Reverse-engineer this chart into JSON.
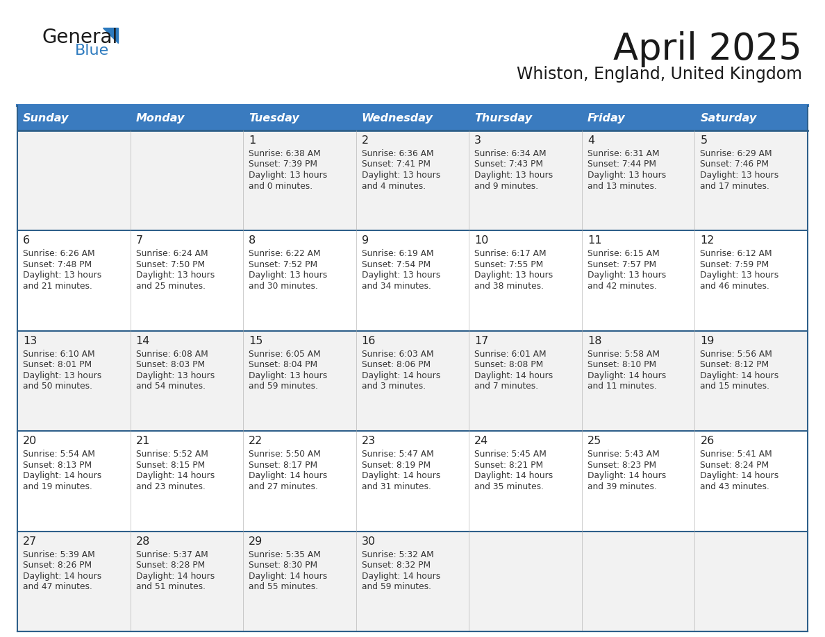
{
  "title": "April 2025",
  "subtitle": "Whiston, England, United Kingdom",
  "header_color": "#3a7bbf",
  "header_text_color": "#ffffff",
  "cell_bg_even": "#f2f2f2",
  "cell_bg_odd": "#ffffff",
  "border_color": "#2e5f8a",
  "text_color": "#333333",
  "day_num_color": "#222222",
  "title_color": "#1a1a1a",
  "subtitle_color": "#1a1a1a",
  "logo_text_color": "#1a1a1a",
  "logo_blue_color": "#2e7bbf",
  "logo_triangle_color": "#2e7bbf",
  "day_headers": [
    "Sunday",
    "Monday",
    "Tuesday",
    "Wednesday",
    "Thursday",
    "Friday",
    "Saturday"
  ],
  "days": [
    {
      "date": 1,
      "col": 2,
      "row": 0,
      "sunrise": "6:38 AM",
      "sunset": "7:39 PM",
      "daylight": "13 hours and 0 minutes."
    },
    {
      "date": 2,
      "col": 3,
      "row": 0,
      "sunrise": "6:36 AM",
      "sunset": "7:41 PM",
      "daylight": "13 hours and 4 minutes."
    },
    {
      "date": 3,
      "col": 4,
      "row": 0,
      "sunrise": "6:34 AM",
      "sunset": "7:43 PM",
      "daylight": "13 hours and 9 minutes."
    },
    {
      "date": 4,
      "col": 5,
      "row": 0,
      "sunrise": "6:31 AM",
      "sunset": "7:44 PM",
      "daylight": "13 hours and 13 minutes."
    },
    {
      "date": 5,
      "col": 6,
      "row": 0,
      "sunrise": "6:29 AM",
      "sunset": "7:46 PM",
      "daylight": "13 hours and 17 minutes."
    },
    {
      "date": 6,
      "col": 0,
      "row": 1,
      "sunrise": "6:26 AM",
      "sunset": "7:48 PM",
      "daylight": "13 hours and 21 minutes."
    },
    {
      "date": 7,
      "col": 1,
      "row": 1,
      "sunrise": "6:24 AM",
      "sunset": "7:50 PM",
      "daylight": "13 hours and 25 minutes."
    },
    {
      "date": 8,
      "col": 2,
      "row": 1,
      "sunrise": "6:22 AM",
      "sunset": "7:52 PM",
      "daylight": "13 hours and 30 minutes."
    },
    {
      "date": 9,
      "col": 3,
      "row": 1,
      "sunrise": "6:19 AM",
      "sunset": "7:54 PM",
      "daylight": "13 hours and 34 minutes."
    },
    {
      "date": 10,
      "col": 4,
      "row": 1,
      "sunrise": "6:17 AM",
      "sunset": "7:55 PM",
      "daylight": "13 hours and 38 minutes."
    },
    {
      "date": 11,
      "col": 5,
      "row": 1,
      "sunrise": "6:15 AM",
      "sunset": "7:57 PM",
      "daylight": "13 hours and 42 minutes."
    },
    {
      "date": 12,
      "col": 6,
      "row": 1,
      "sunrise": "6:12 AM",
      "sunset": "7:59 PM",
      "daylight": "13 hours and 46 minutes."
    },
    {
      "date": 13,
      "col": 0,
      "row": 2,
      "sunrise": "6:10 AM",
      "sunset": "8:01 PM",
      "daylight": "13 hours and 50 minutes."
    },
    {
      "date": 14,
      "col": 1,
      "row": 2,
      "sunrise": "6:08 AM",
      "sunset": "8:03 PM",
      "daylight": "13 hours and 54 minutes."
    },
    {
      "date": 15,
      "col": 2,
      "row": 2,
      "sunrise": "6:05 AM",
      "sunset": "8:04 PM",
      "daylight": "13 hours and 59 minutes."
    },
    {
      "date": 16,
      "col": 3,
      "row": 2,
      "sunrise": "6:03 AM",
      "sunset": "8:06 PM",
      "daylight": "14 hours and 3 minutes."
    },
    {
      "date": 17,
      "col": 4,
      "row": 2,
      "sunrise": "6:01 AM",
      "sunset": "8:08 PM",
      "daylight": "14 hours and 7 minutes."
    },
    {
      "date": 18,
      "col": 5,
      "row": 2,
      "sunrise": "5:58 AM",
      "sunset": "8:10 PM",
      "daylight": "14 hours and 11 minutes."
    },
    {
      "date": 19,
      "col": 6,
      "row": 2,
      "sunrise": "5:56 AM",
      "sunset": "8:12 PM",
      "daylight": "14 hours and 15 minutes."
    },
    {
      "date": 20,
      "col": 0,
      "row": 3,
      "sunrise": "5:54 AM",
      "sunset": "8:13 PM",
      "daylight": "14 hours and 19 minutes."
    },
    {
      "date": 21,
      "col": 1,
      "row": 3,
      "sunrise": "5:52 AM",
      "sunset": "8:15 PM",
      "daylight": "14 hours and 23 minutes."
    },
    {
      "date": 22,
      "col": 2,
      "row": 3,
      "sunrise": "5:50 AM",
      "sunset": "8:17 PM",
      "daylight": "14 hours and 27 minutes."
    },
    {
      "date": 23,
      "col": 3,
      "row": 3,
      "sunrise": "5:47 AM",
      "sunset": "8:19 PM",
      "daylight": "14 hours and 31 minutes."
    },
    {
      "date": 24,
      "col": 4,
      "row": 3,
      "sunrise": "5:45 AM",
      "sunset": "8:21 PM",
      "daylight": "14 hours and 35 minutes."
    },
    {
      "date": 25,
      "col": 5,
      "row": 3,
      "sunrise": "5:43 AM",
      "sunset": "8:23 PM",
      "daylight": "14 hours and 39 minutes."
    },
    {
      "date": 26,
      "col": 6,
      "row": 3,
      "sunrise": "5:41 AM",
      "sunset": "8:24 PM",
      "daylight": "14 hours and 43 minutes."
    },
    {
      "date": 27,
      "col": 0,
      "row": 4,
      "sunrise": "5:39 AM",
      "sunset": "8:26 PM",
      "daylight": "14 hours and 47 minutes."
    },
    {
      "date": 28,
      "col": 1,
      "row": 4,
      "sunrise": "5:37 AM",
      "sunset": "8:28 PM",
      "daylight": "14 hours and 51 minutes."
    },
    {
      "date": 29,
      "col": 2,
      "row": 4,
      "sunrise": "5:35 AM",
      "sunset": "8:30 PM",
      "daylight": "14 hours and 55 minutes."
    },
    {
      "date": 30,
      "col": 3,
      "row": 4,
      "sunrise": "5:32 AM",
      "sunset": "8:32 PM",
      "daylight": "14 hours and 59 minutes."
    }
  ],
  "n_rows": 5,
  "n_cols": 7
}
